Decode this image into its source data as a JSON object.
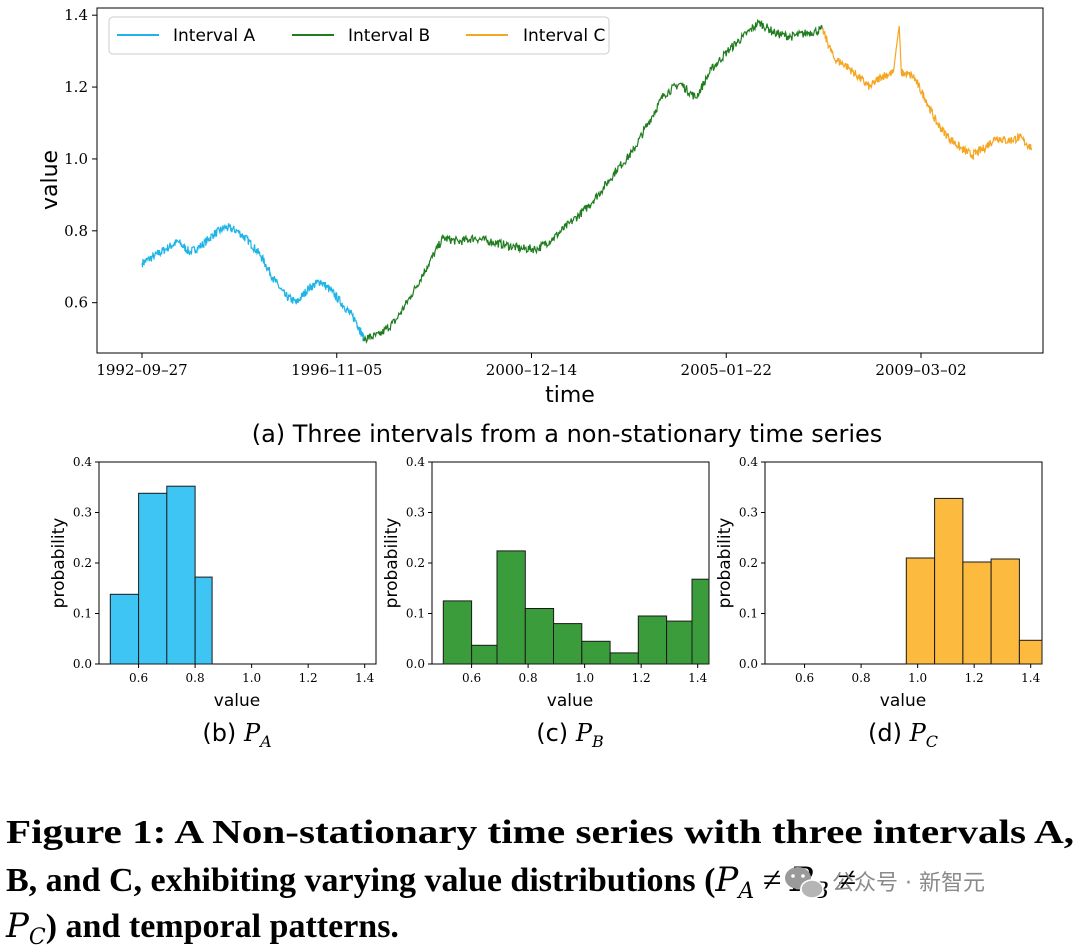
{
  "chart_data": [
    {
      "type": "line",
      "panel_caption": "(a) Three intervals from a non-stationary time series",
      "xlabel": "time",
      "ylabel": "value",
      "x_ticks": [
        "1992–09–27",
        "1996–11–05",
        "2000–12–14",
        "2005–01–22",
        "2009–03–02"
      ],
      "y_ticks": [
        "0.6",
        "0.8",
        "1.0",
        "1.2",
        "1.4"
      ],
      "ylim": [
        0.46,
        1.42
      ],
      "grid": false,
      "legend_position": "top-left",
      "series": [
        {
          "name": "Interval A",
          "color": "#1fb4e6",
          "points": [
            [
              "1992-09-27",
              0.71
            ],
            [
              "1993-01-01",
              0.73
            ],
            [
              "1993-04-01",
              0.75
            ],
            [
              "1993-07-01",
              0.77
            ],
            [
              "1993-10-01",
              0.74
            ],
            [
              "1994-01-01",
              0.76
            ],
            [
              "1994-04-01",
              0.79
            ],
            [
              "1994-07-01",
              0.81
            ],
            [
              "1994-10-01",
              0.8
            ],
            [
              "1995-01-01",
              0.77
            ],
            [
              "1995-04-01",
              0.73
            ],
            [
              "1995-07-01",
              0.67
            ],
            [
              "1995-10-01",
              0.62
            ],
            [
              "1996-01-01",
              0.6
            ],
            [
              "1996-04-01",
              0.64
            ],
            [
              "1996-07-01",
              0.66
            ],
            [
              "1996-10-01",
              0.63
            ],
            [
              "1997-01-01",
              0.59
            ],
            [
              "1997-04-01",
              0.55
            ],
            [
              "1997-06-01",
              0.5
            ]
          ]
        },
        {
          "name": "Interval B",
          "color": "#1f7d1f",
          "points": [
            [
              "1997-06-01",
              0.5
            ],
            [
              "1997-10-01",
              0.51
            ],
            [
              "1998-02-01",
              0.55
            ],
            [
              "1998-06-01",
              0.62
            ],
            [
              "1998-10-01",
              0.7
            ],
            [
              "1999-02-01",
              0.78
            ],
            [
              "1999-06-01",
              0.77
            ],
            [
              "1999-10-01",
              0.78
            ],
            [
              "2000-02-01",
              0.77
            ],
            [
              "2000-06-01",
              0.76
            ],
            [
              "2000-10-01",
              0.75
            ],
            [
              "2001-02-01",
              0.75
            ],
            [
              "2001-06-01",
              0.78
            ],
            [
              "2001-10-01",
              0.82
            ],
            [
              "2002-02-01",
              0.86
            ],
            [
              "2002-06-01",
              0.91
            ],
            [
              "2002-10-01",
              0.97
            ],
            [
              "2003-02-01",
              1.02
            ],
            [
              "2003-06-01",
              1.1
            ],
            [
              "2003-10-01",
              1.18
            ],
            [
              "2004-02-01",
              1.21
            ],
            [
              "2004-06-01",
              1.17
            ],
            [
              "2004-10-01",
              1.25
            ],
            [
              "2005-02-01",
              1.3
            ],
            [
              "2005-06-01",
              1.34
            ],
            [
              "2005-10-01",
              1.38
            ],
            [
              "2006-02-01",
              1.35
            ],
            [
              "2006-06-01",
              1.34
            ],
            [
              "2006-10-01",
              1.35
            ],
            [
              "2007-02-01",
              1.36
            ]
          ]
        },
        {
          "name": "Interval C",
          "color": "#f5a623",
          "points": [
            [
              "2007-02-01",
              1.36
            ],
            [
              "2007-05-01",
              1.28
            ],
            [
              "2007-08-01",
              1.26
            ],
            [
              "2007-11-01",
              1.23
            ],
            [
              "2008-02-01",
              1.2
            ],
            [
              "2008-05-01",
              1.23
            ],
            [
              "2008-08-01",
              1.24
            ],
            [
              "2008-09-15",
              1.37
            ],
            [
              "2008-10-01",
              1.24
            ],
            [
              "2009-01-01",
              1.23
            ],
            [
              "2009-04-01",
              1.17
            ],
            [
              "2009-07-01",
              1.1
            ],
            [
              "2009-10-01",
              1.06
            ],
            [
              "2010-01-01",
              1.03
            ],
            [
              "2010-04-01",
              1.01
            ],
            [
              "2010-07-01",
              1.03
            ],
            [
              "2010-10-01",
              1.06
            ],
            [
              "2011-01-01",
              1.05
            ],
            [
              "2011-04-01",
              1.06
            ],
            [
              "2011-07-01",
              1.03
            ]
          ]
        }
      ]
    },
    {
      "type": "bar",
      "panel_caption_prefix": "(b)",
      "panel_caption_math": "P",
      "panel_caption_sub": "A",
      "xlabel": "value",
      "ylabel": "probability",
      "x_ticks": [
        "0.6",
        "0.8",
        "1.0",
        "1.2",
        "1.4"
      ],
      "y_ticks": [
        "0.0",
        "0.1",
        "0.2",
        "0.3",
        "0.4"
      ],
      "xlim": [
        0.46,
        1.44
      ],
      "ylim": [
        0,
        0.4
      ],
      "color": "#3fc5f4",
      "bins": [
        [
          0.5,
          0.6,
          0.138
        ],
        [
          0.6,
          0.7,
          0.338
        ],
        [
          0.7,
          0.8,
          0.352
        ],
        [
          0.8,
          0.86,
          0.172
        ]
      ]
    },
    {
      "type": "bar",
      "panel_caption_prefix": "(c)",
      "panel_caption_math": "P",
      "panel_caption_sub": "B",
      "xlabel": "value",
      "ylabel": "probability",
      "x_ticks": [
        "0.6",
        "0.8",
        "1.0",
        "1.2",
        "1.4"
      ],
      "y_ticks": [
        "0.0",
        "0.1",
        "0.2",
        "0.3",
        "0.4"
      ],
      "xlim": [
        0.46,
        1.44
      ],
      "ylim": [
        0,
        0.4
      ],
      "color": "#3b9c3b",
      "bins": [
        [
          0.5,
          0.6,
          0.125
        ],
        [
          0.6,
          0.69,
          0.037
        ],
        [
          0.69,
          0.79,
          0.224
        ],
        [
          0.79,
          0.89,
          0.11
        ],
        [
          0.89,
          0.99,
          0.08
        ],
        [
          0.99,
          1.09,
          0.045
        ],
        [
          1.09,
          1.19,
          0.022
        ],
        [
          1.19,
          1.29,
          0.095
        ],
        [
          1.29,
          1.38,
          0.085
        ],
        [
          1.38,
          1.48,
          0.168
        ]
      ]
    },
    {
      "type": "bar",
      "panel_caption_prefix": "(d)",
      "panel_caption_math": "P",
      "panel_caption_sub": "C",
      "xlabel": "value",
      "ylabel": "probability",
      "x_ticks": [
        "0.6",
        "0.8",
        "1.0",
        "1.2",
        "1.4"
      ],
      "y_ticks": [
        "0.0",
        "0.1",
        "0.2",
        "0.3",
        "0.4"
      ],
      "xlim": [
        0.46,
        1.44
      ],
      "ylim": [
        0,
        0.4
      ],
      "color": "#fcba3f",
      "bins": [
        [
          0.96,
          1.06,
          0.21
        ],
        [
          1.06,
          1.16,
          0.328
        ],
        [
          1.16,
          1.26,
          0.202
        ],
        [
          1.26,
          1.36,
          0.208
        ],
        [
          1.36,
          1.46,
          0.047
        ]
      ]
    }
  ],
  "figure_caption": {
    "line1": "Figure 1: A Non-stationary time series with three intervals A,",
    "line2_text": "B, and C, exhibiting varying value distributions (",
    "line2_m1": "P",
    "line2_s1": "A",
    "line2_neq1": " ≠ ",
    "line2_m2": "P",
    "line2_s2": "B",
    "line2_neq2": " ≠",
    "line3_m": "P",
    "line3_s": "C",
    "line3_text": ") and temporal patterns."
  },
  "watermark": {
    "icon": "wechat-icon",
    "text": "公众号 · 新智元"
  }
}
